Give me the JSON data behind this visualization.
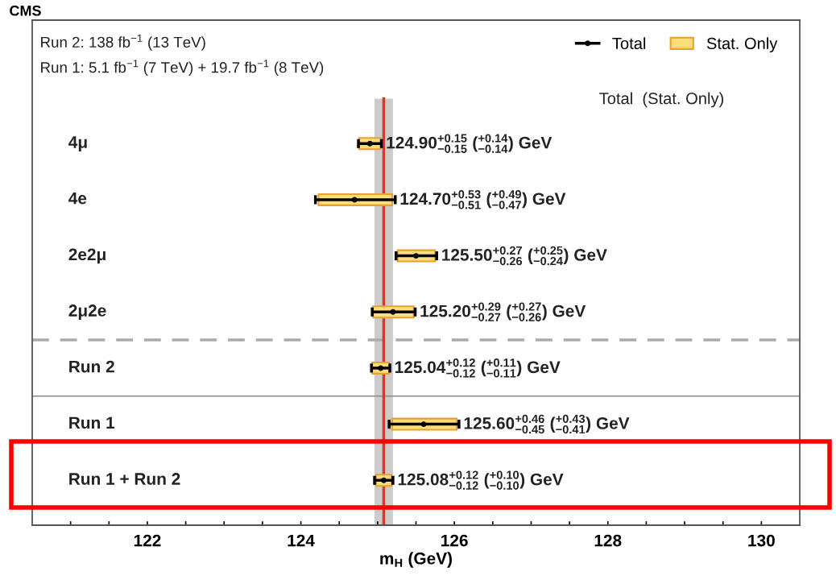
{
  "chart_data": {
    "type": "scatter",
    "orientation": "horizontal",
    "title": "CMS",
    "xlabel": "m$_{H}$ (GeV)",
    "categories": [
      "4μ",
      "4e",
      "2e2μ",
      "2μ2e",
      "Run 2",
      "Run 1",
      "Run 1 + Run 2"
    ],
    "xlim": [
      120.5,
      130.5
    ],
    "xticks": [
      {
        "value": 121,
        "label": null
      },
      {
        "value": 121.5,
        "label": null
      },
      122,
      {
        "value": 122.5,
        "label": null
      },
      {
        "value": 123,
        "label": null
      },
      {
        "value": 123.5,
        "label": null
      },
      124,
      {
        "value": 124.5,
        "label": null
      },
      {
        "value": 125,
        "label": null
      },
      {
        "value": 125.5,
        "label": null
      },
      126,
      {
        "value": 126.5,
        "label": null
      },
      {
        "value": 127,
        "label": null
      },
      {
        "value": 127.5,
        "label": null
      },
      128,
      {
        "value": 128.5,
        "label": null
      },
      {
        "value": 129,
        "label": null
      },
      {
        "value": 129.5,
        "label": null
      },
      130
    ],
    "tick_labels": "x",
    "legend": "top right",
    "marker": "circle",
    "grid": false,
    "series": [
      {
        "name": "Stat. Only",
        "type": "bar",
        "color": "#fddc7c",
        "base": [
          124.76,
          124.23,
          125.26,
          124.94,
          124.93,
          125.19,
          124.98
        ],
        "values": [
          0.28,
          0.96,
          0.49,
          0.53,
          0.22,
          0.84,
          0.2
        ]
      },
      {
        "name": "Total",
        "color": "#000000",
        "values": [
          124.9,
          124.7,
          125.5,
          125.2,
          125.04,
          125.6,
          125.08
        ],
        "errors": [
          [
            124.75,
            125.05
          ],
          [
            124.19,
            125.23
          ],
          [
            125.24,
            125.77
          ],
          [
            124.93,
            125.49
          ],
          [
            124.92,
            125.16
          ],
          [
            125.15,
            126.06
          ],
          [
            124.96,
            125.2
          ]
        ],
        "value_labels": [
          "124.90$^{+0.15}$$_{−0.15}$ ($^{+0.14}$$_{−0.14}$) GeV",
          "124.70$^{+0.53}$$_{−0.51}$ ($^{+0.49}$$_{−0.47}$) GeV",
          "125.50$^{+0.27}$$_{−0.26}$ ($^{+0.25}$$_{−0.24}$) GeV",
          "125.20$^{+0.29}$$_{−0.27}$ ($^{+0.27}$$_{−0.26}$) GeV",
          "125.04$^{+0.12}$$_{−0.12}$ ($^{+0.11}$$_{−0.11}$) GeV",
          "125.60$^{+0.46}$$_{−0.45}$ ($^{+0.43}$$_{−0.41}$) GeV",
          "125.08$^{+0.12}$$_{−0.12}$ ($^{+0.10}$$_{−0.10}$) GeV"
        ]
      }
    ],
    "ref_lines": [
      {
        "axis": "x",
        "value": 125.08,
        "color": "#e8302a",
        "line_style": "solid"
      },
      {
        "axis": "y",
        "value": "Run 2",
        "color": "#aaaaaa",
        "line_style": "dashed"
      },
      {
        "axis": "y",
        "value": "Run 1",
        "color": "#888888",
        "line_style": "solid"
      }
    ],
    "bands": [
      {
        "axis": "x",
        "from": 124.96,
        "to": 125.2,
        "color": "#cccccc"
      }
    ],
    "annotations": [
      "Run 2: 138 fb$^{−1}$ (13 TeV)",
      "Run 1: 5.1 fb$^{−1}$ (7 TeV) + 19.7 fb$^{−1}$ (8 TeV)",
      "Total  (Stat. Only)"
    ]
  }
}
